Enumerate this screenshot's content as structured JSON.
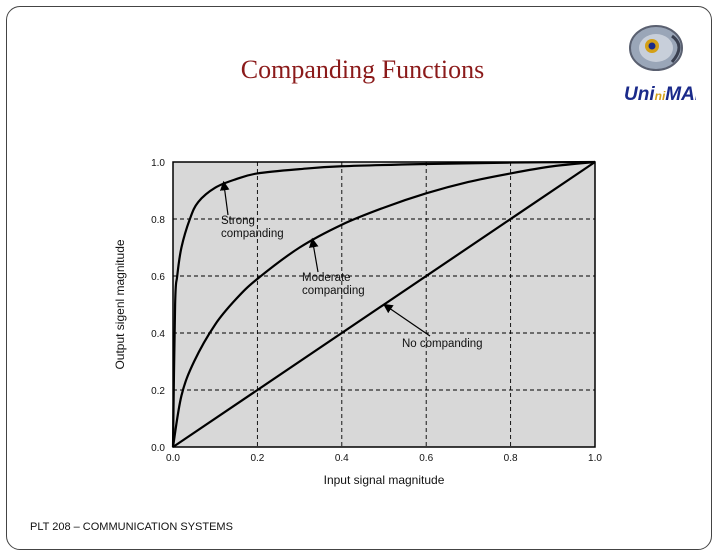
{
  "slide": {
    "title": "Companding Functions",
    "footer": "PLT 208 – COMMUNICATION SYSTEMS",
    "logo_text": "UniMAP"
  },
  "colors": {
    "title": "#8b1a1a",
    "plot_bg": "#d8d8d8",
    "line": "#000000",
    "logo_blue": "#1a2a8a",
    "logo_gold": "#d4a017"
  },
  "chart_data": {
    "type": "line",
    "xlabel": "Input signal magnitude",
    "ylabel": "Output sigenl magnitude",
    "xlim": [
      0,
      1
    ],
    "ylim": [
      0,
      1
    ],
    "x_ticks": [
      "0.0",
      "0.2",
      "0.4",
      "0.6",
      "0.8",
      "1.0"
    ],
    "y_ticks": [
      "0.0",
      "0.2",
      "0.4",
      "0.6",
      "0.8",
      "1.0"
    ],
    "grid": true,
    "series": [
      {
        "name": "Strong companding",
        "x": [
          0,
          0.005,
          0.01,
          0.02,
          0.04,
          0.06,
          0.1,
          0.15,
          0.2,
          0.3,
          0.4,
          0.6,
          0.8,
          1.0
        ],
        "y": [
          0,
          0.5,
          0.6,
          0.7,
          0.8,
          0.86,
          0.91,
          0.94,
          0.96,
          0.975,
          0.985,
          0.993,
          0.998,
          1.0
        ]
      },
      {
        "name": "Moderate companding",
        "x": [
          0,
          0.02,
          0.05,
          0.1,
          0.15,
          0.2,
          0.3,
          0.4,
          0.5,
          0.6,
          0.7,
          0.8,
          0.9,
          1.0
        ],
        "y": [
          0,
          0.18,
          0.3,
          0.43,
          0.52,
          0.59,
          0.7,
          0.78,
          0.84,
          0.89,
          0.93,
          0.96,
          0.985,
          1.0
        ]
      },
      {
        "name": "No companding",
        "x": [
          0,
          1
        ],
        "y": [
          0,
          1
        ]
      }
    ],
    "annotations": [
      {
        "lines": [
          "Strong",
          "companding"
        ],
        "series": "Strong companding"
      },
      {
        "lines": [
          "Moderate",
          "companding"
        ],
        "series": "Moderate companding"
      },
      {
        "lines": [
          "No companding"
        ],
        "series": "No companding"
      }
    ]
  }
}
